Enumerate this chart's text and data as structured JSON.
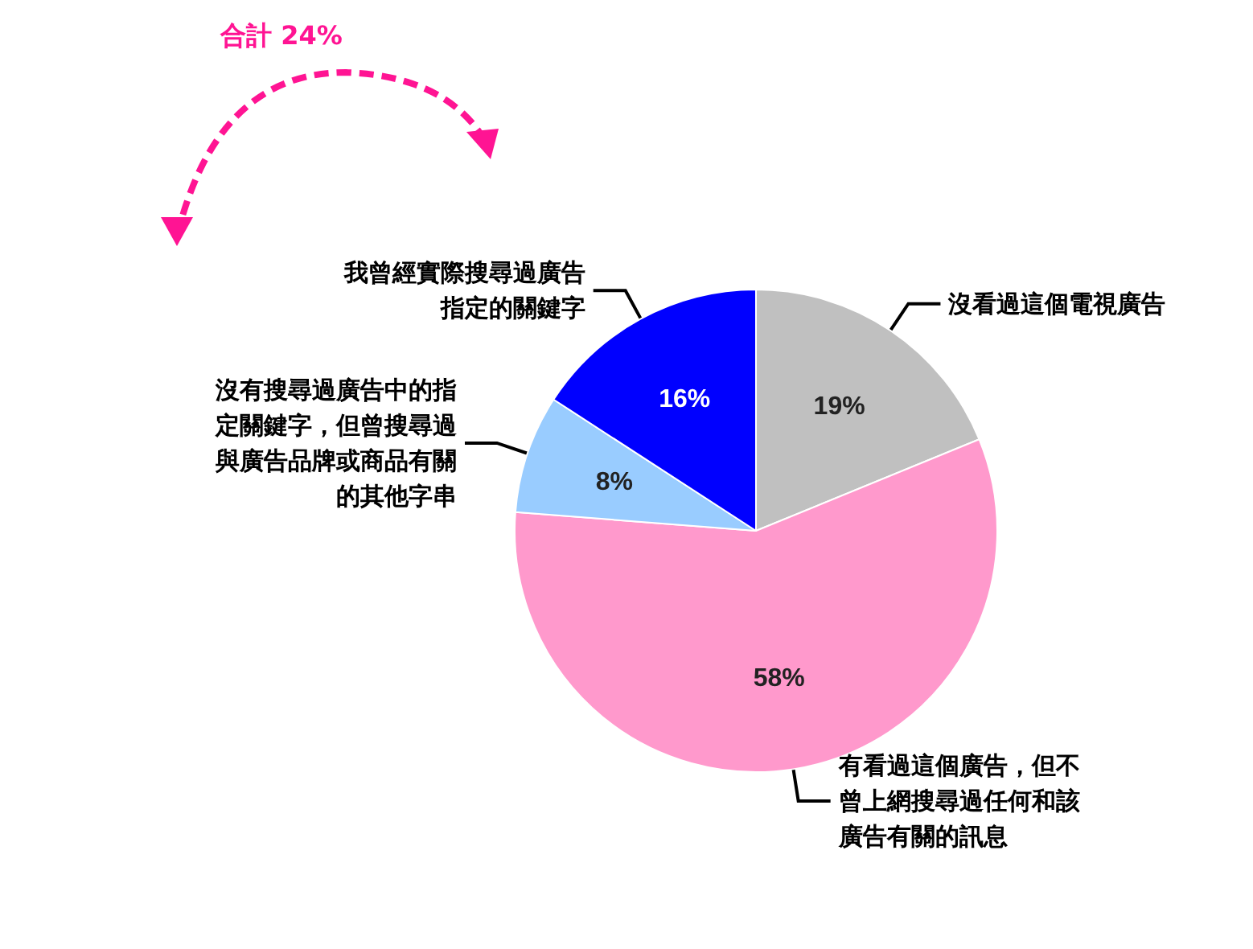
{
  "chart_data": {
    "type": "pie",
    "categories": [
      "沒看過這個電視廣告",
      "有看過這個廣告，但不曾上網搜尋過任何和該廣告有關的訊息",
      "沒有搜尋過廣告中的指定關鍵字，但曾搜尋過與廣告品牌或商品有關的其他字串",
      "我曾經實際搜尋過廣告指定的關鍵字"
    ],
    "values": [
      19,
      58,
      8,
      16
    ],
    "colors": [
      "#c0c0c0",
      "#ff99cc",
      "#99ccff",
      "#0000ff"
    ],
    "value_labels": [
      "19%",
      "58%",
      "8%",
      "16%"
    ],
    "annotations": [
      "合計 24%"
    ]
  }
}
